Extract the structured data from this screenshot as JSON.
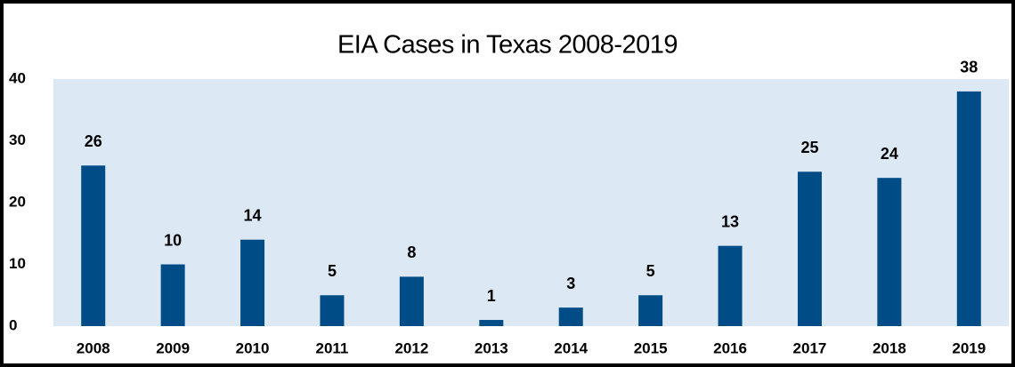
{
  "chart_data": {
    "type": "bar",
    "title": "EIA Cases in Texas 2008-2019",
    "categories": [
      "2008",
      "2009",
      "2010",
      "2011",
      "2012",
      "2013",
      "2014",
      "2015",
      "2016",
      "2017",
      "2018",
      "2019"
    ],
    "values": [
      26,
      10,
      14,
      5,
      8,
      1,
      3,
      5,
      13,
      25,
      24,
      38
    ],
    "color": "#004c86",
    "ylim": [
      0,
      40
    ],
    "yticks": [
      0,
      10,
      20,
      30,
      40
    ],
    "grid": false
  }
}
